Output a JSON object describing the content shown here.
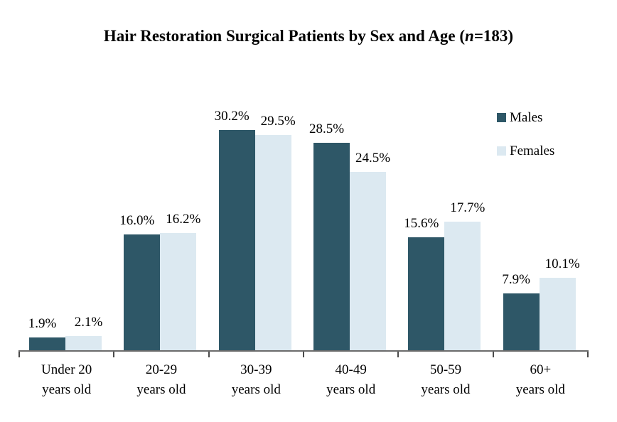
{
  "title": {
    "prefix": "Hair Restoration Surgical Patients by Sex and Age (",
    "n": "n",
    "suffix": "=183)"
  },
  "chart_data": {
    "type": "bar",
    "title": "Hair Restoration Surgical Patients by Sex and Age (n=183)",
    "n_total": 183,
    "categories": [
      {
        "line1": "Under 20",
        "line2": "years old"
      },
      {
        "line1": "20-29",
        "line2": "years old"
      },
      {
        "line1": "30-39",
        "line2": "years old"
      },
      {
        "line1": "40-49",
        "line2": "years old"
      },
      {
        "line1": "50-59",
        "line2": "years old"
      },
      {
        "line1": "60+",
        "line2": "years old"
      }
    ],
    "series": [
      {
        "name": "Males",
        "color": "#2E5767",
        "values": [
          1.9,
          16.0,
          30.2,
          28.5,
          15.6,
          7.9
        ],
        "labels": [
          "1.9%",
          "16.0%",
          "30.2%",
          "28.5%",
          "15.6%",
          "7.9%"
        ]
      },
      {
        "name": "Females",
        "color": "#DCE9F1",
        "values": [
          2.1,
          16.2,
          29.5,
          24.5,
          17.7,
          10.1
        ],
        "labels": [
          "2.1%",
          "16.2%",
          "29.5%",
          "24.5%",
          "17.7%",
          "10.1%"
        ]
      }
    ],
    "value_suffix": "%",
    "xlabel": "",
    "ylabel": "",
    "ylim": [
      0,
      33
    ],
    "grid": false,
    "y_axis_shown": false,
    "legend_position": "top-right",
    "axis_color": "#6B6B6B",
    "tick_color": "#4A4A4A"
  }
}
